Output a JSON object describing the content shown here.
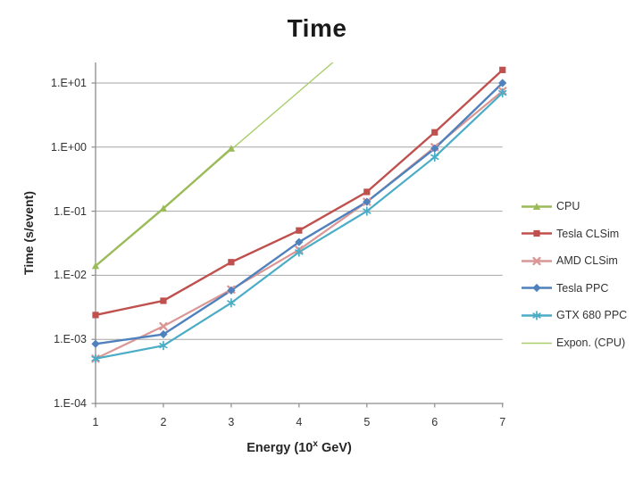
{
  "chart_data": {
    "type": "line",
    "title": "Time",
    "ylabel": "Time (s/event)",
    "xlabel_prefix": "Energy (10",
    "xlabel_sup": "x",
    "xlabel_suffix": " GeV)",
    "y_scale": "log",
    "ylim": [
      0.0001,
      21
    ],
    "x_categories": [
      1,
      2,
      3,
      4,
      5,
      6,
      7
    ],
    "xtick_labels": [
      "1",
      "2",
      "3",
      "4",
      "5",
      "6",
      "7"
    ],
    "ytick_labels": [
      "1.E+01",
      "1.E+00",
      "1.E-01",
      "1.E-02",
      "1.E-03",
      "1.E-04"
    ],
    "ytick_decades": [
      1,
      0,
      -1,
      -2,
      -3,
      -4
    ],
    "grid": "horizontal-decade-lines",
    "legend_position": "right",
    "axis_color": "#8c8c8c",
    "grid_color": "#a6a6a6",
    "text_color": "#262626",
    "series": [
      {
        "name": "CPU",
        "color": "#9BBB59",
        "marker": "triangle",
        "line_width": 2.4,
        "x": [
          1,
          2,
          3
        ],
        "values": [
          0.014,
          0.11,
          0.95
        ]
      },
      {
        "name": "Tesla CLSim",
        "color": "#C0504D",
        "marker": "square",
        "line_width": 2.4,
        "x": [
          1,
          2,
          3,
          4,
          5,
          6,
          7
        ],
        "values": [
          0.0024,
          0.004,
          0.016,
          0.05,
          0.2,
          1.7,
          16
        ]
      },
      {
        "name": "AMD CLSim",
        "color": "#D99694",
        "marker": "xcross",
        "line_width": 2.2,
        "x": [
          1,
          2,
          3,
          4,
          5,
          6,
          7
        ],
        "values": [
          0.0005,
          0.0016,
          0.006,
          0.025,
          0.14,
          1.0,
          7.5
        ]
      },
      {
        "name": "Tesla PPC",
        "color": "#4F81BD",
        "marker": "diamond",
        "line_width": 2.4,
        "x": [
          1,
          2,
          3,
          4,
          5,
          6,
          7
        ],
        "values": [
          0.00085,
          0.0012,
          0.0058,
          0.033,
          0.14,
          0.95,
          10
        ]
      },
      {
        "name": "GTX 680 PPC",
        "color": "#4BACC6",
        "marker": "asterisk",
        "line_width": 2.2,
        "x": [
          1,
          2,
          3,
          4,
          5,
          6,
          7
        ],
        "values": [
          0.0005,
          0.0008,
          0.0037,
          0.023,
          0.1,
          0.7,
          7
        ]
      },
      {
        "name": "Expon. (CPU)",
        "color": "#A9CE6D",
        "marker": "none",
        "line_width": 1.4,
        "trendline": true,
        "x": [
          1,
          4.5
        ],
        "values": [
          0.014,
          21
        ]
      }
    ]
  }
}
